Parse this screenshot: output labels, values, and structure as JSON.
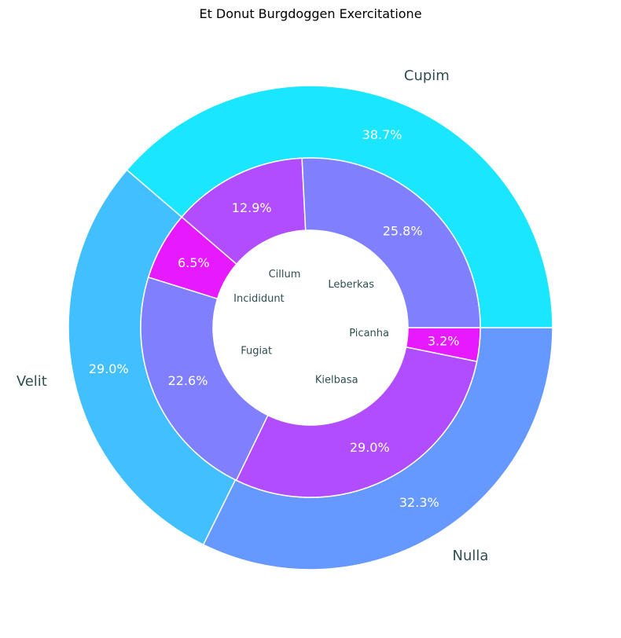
{
  "chart_data": {
    "type": "donut",
    "title": "Et Donut Burgdoggen Exercitatione",
    "outer": {
      "categories": [
        "Nulla",
        "Velit",
        "Cupim"
      ],
      "values": [
        32.3,
        29.0,
        38.7
      ],
      "labels_pct": [
        "32.3%",
        "29.0%",
        "38.7%"
      ],
      "colors": [
        "#6699ff",
        "#42bfff",
        "#1ae6ff"
      ]
    },
    "inner": {
      "categories": [
        "Picanha",
        "Kielbasa",
        "Fugiat",
        "Incididunt",
        "Cillum",
        "Leberkas"
      ],
      "values": [
        3.2,
        29.0,
        22.6,
        6.5,
        12.9,
        25.8
      ],
      "labels_pct": [
        "3.2%",
        "29.0%",
        "22.6%",
        "6.5%",
        "12.9%",
        "25.8%"
      ],
      "colors": [
        "#e619ff",
        "#b24dff",
        "#8080ff",
        "#e619ff",
        "#b24dff",
        "#8080ff"
      ]
    },
    "start_angle": "3 o'clock",
    "direction": "clockwise"
  }
}
